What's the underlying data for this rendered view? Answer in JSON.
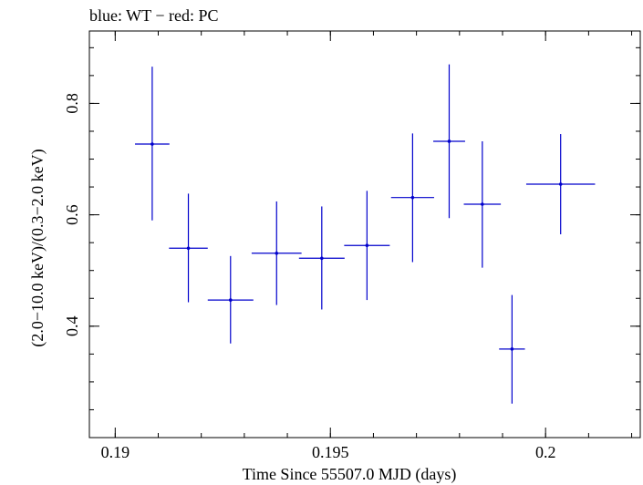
{
  "chart_data": {
    "type": "scatter",
    "title": "blue: WT − red: PC",
    "xlabel": "Time Since 55507.0 MJD (days)",
    "ylabel": "(2.0−10.0 keV)/(0.3−2.0 keV)",
    "xlim": [
      0.1894,
      0.2022
    ],
    "ylim": [
      0.2,
      0.93
    ],
    "xticks": [
      {
        "value": 0.19,
        "label": "0.19"
      },
      {
        "value": 0.195,
        "label": "0.195"
      },
      {
        "value": 0.2,
        "label": "0.2"
      }
    ],
    "yticks": [
      {
        "value": 0.4,
        "label": "0.4"
      },
      {
        "value": 0.6,
        "label": "0.6"
      },
      {
        "value": 0.8,
        "label": "0.8"
      }
    ],
    "grid": false,
    "series": [
      {
        "color": "#0000cc",
        "points": [
          {
            "x": 0.19086,
            "y": 0.727,
            "xerr": 0.0004,
            "ylo": 0.59,
            "yhi": 0.866
          },
          {
            "x": 0.1917,
            "y": 0.54,
            "xerr": 0.00045,
            "ylo": 0.443,
            "yhi": 0.638
          },
          {
            "x": 0.19268,
            "y": 0.447,
            "xerr": 0.00053,
            "ylo": 0.369,
            "yhi": 0.526
          },
          {
            "x": 0.19375,
            "y": 0.531,
            "xerr": 0.00058,
            "ylo": 0.438,
            "yhi": 0.624
          },
          {
            "x": 0.1948,
            "y": 0.522,
            "xerr": 0.00053,
            "ylo": 0.43,
            "yhi": 0.615
          },
          {
            "x": 0.19585,
            "y": 0.545,
            "xerr": 0.00053,
            "ylo": 0.447,
            "yhi": 0.643
          },
          {
            "x": 0.19691,
            "y": 0.631,
            "xerr": 0.0005,
            "ylo": 0.515,
            "yhi": 0.746
          },
          {
            "x": 0.19776,
            "y": 0.732,
            "xerr": 0.00037,
            "ylo": 0.594,
            "yhi": 0.87
          },
          {
            "x": 0.19853,
            "y": 0.619,
            "xerr": 0.00043,
            "ylo": 0.505,
            "yhi": 0.732
          },
          {
            "x": 0.19922,
            "y": 0.359,
            "xerr": 0.0003,
            "ylo": 0.261,
            "yhi": 0.456
          },
          {
            "x": 0.20035,
            "y": 0.655,
            "xerr": 0.0008,
            "ylo": 0.565,
            "yhi": 0.745
          }
        ]
      }
    ]
  }
}
